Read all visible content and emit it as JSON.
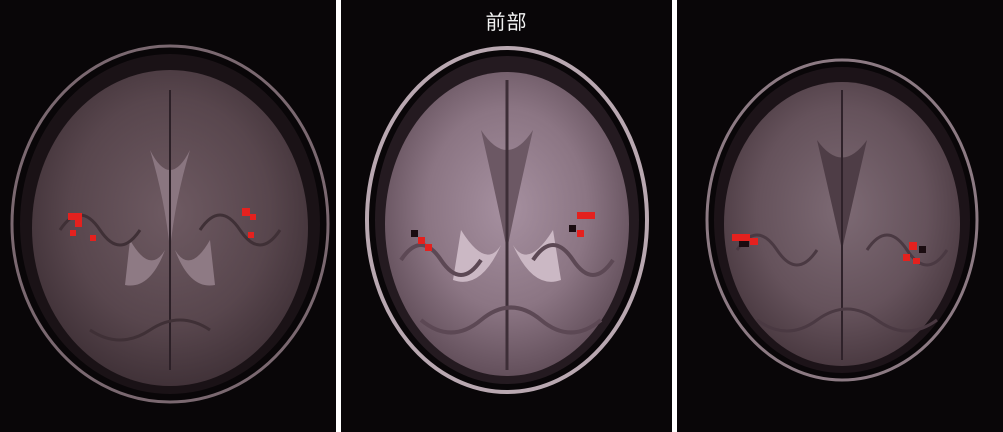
{
  "figure": {
    "center_label": "前部"
  }
}
